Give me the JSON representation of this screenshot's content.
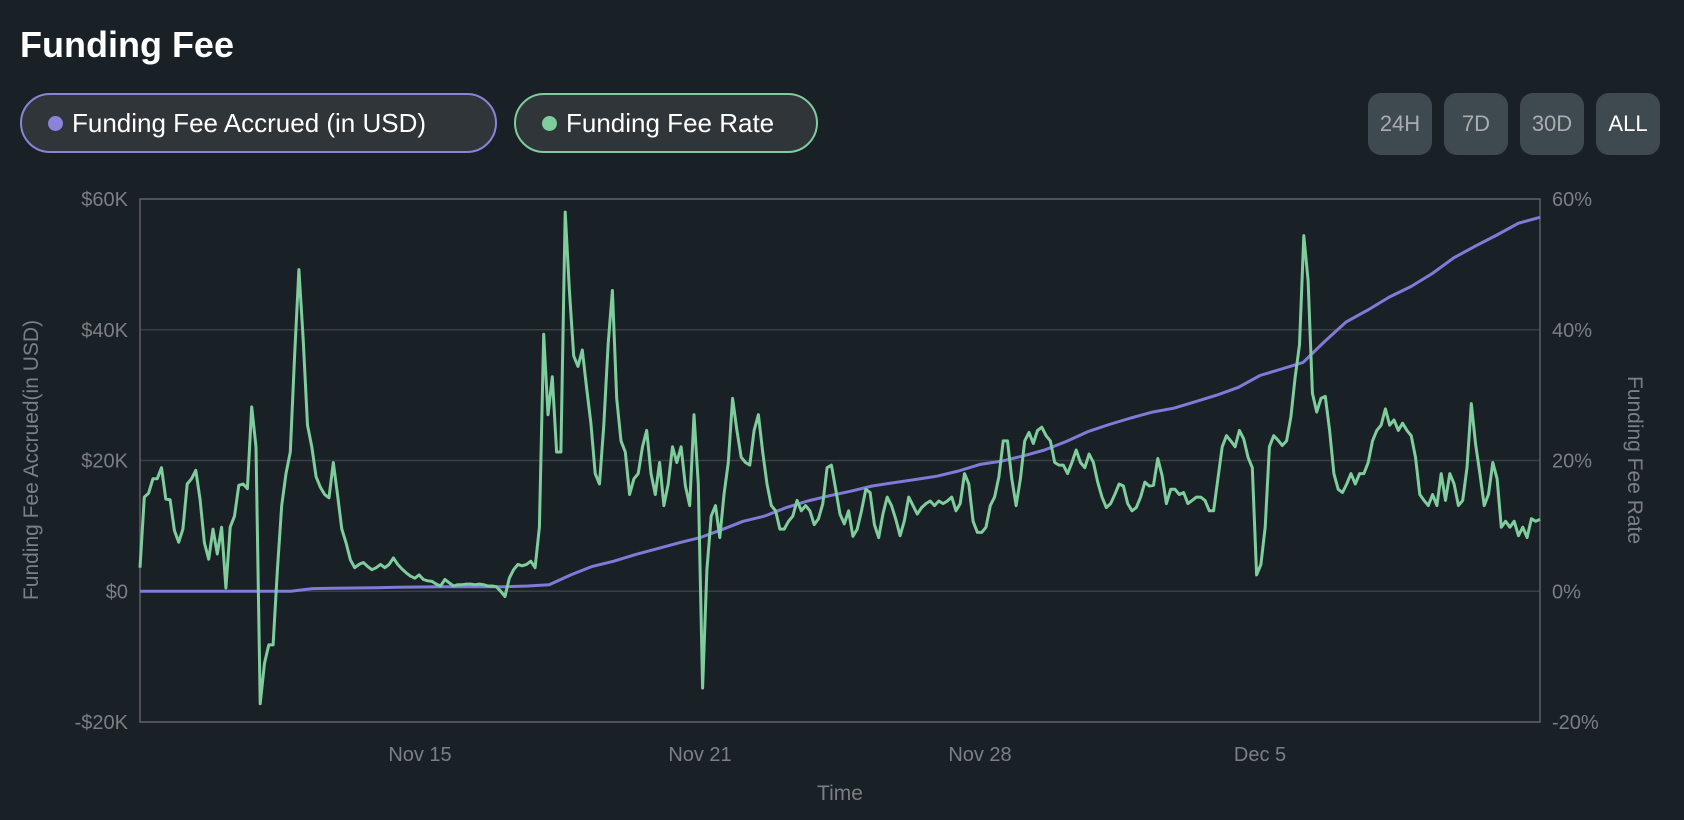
{
  "title": "Funding Fee",
  "legend": [
    {
      "label": "Funding Fee Accrued (in USD)",
      "color": "#8a83d8"
    },
    {
      "label": "Funding Fee Rate",
      "color": "#7fcc9c"
    }
  ],
  "ranges": [
    "24H",
    "7D",
    "30D",
    "ALL"
  ],
  "active_range": "ALL",
  "chart_data": {
    "type": "line",
    "xlabel": "Time",
    "ylabel_left": "Funding Fee Accrued(in USD)",
    "ylabel_right": "Funding Fee Rate",
    "grid": true,
    "x_range_days": [
      0,
      32.5
    ],
    "x_ticks": [
      {
        "label": "Nov 15",
        "day": 6.5
      },
      {
        "label": "Nov 21",
        "day": 13
      },
      {
        "label": "Nov 28",
        "day": 19.5
      },
      {
        "label": "Dec 5",
        "day": 26
      }
    ],
    "y_left": {
      "range": [
        -20000,
        60000
      ],
      "ticks": [
        60000,
        40000,
        20000,
        0,
        -20000
      ],
      "tick_labels": [
        "$60K",
        "$40K",
        "$20K",
        "$0",
        "-$20K"
      ]
    },
    "y_right": {
      "range": [
        -20,
        60
      ],
      "ticks": [
        60,
        40,
        20,
        0,
        -20
      ],
      "tick_labels": [
        "60%",
        "40%",
        "20%",
        "0%",
        "-20%"
      ]
    },
    "series": [
      {
        "name": "Funding Fee Accrued (in USD)",
        "axis": "left",
        "color": "#7f7bd8",
        "unit": "thousand USD",
        "step_days": 0.5,
        "values": [
          0,
          0,
          0,
          0,
          0,
          0,
          0,
          0,
          0.4,
          0.45,
          0.5,
          0.55,
          0.6,
          0.65,
          0.7,
          0.7,
          0.7,
          0.7,
          0.8,
          1.0,
          2.5,
          3.8,
          4.6,
          5.6,
          6.5,
          7.4,
          8.2,
          9.4,
          10.7,
          11.5,
          12.8,
          13.8,
          14.6,
          15.3,
          16.1,
          16.6,
          17.1,
          17.6,
          18.4,
          19.4,
          19.9,
          20.7,
          21.6,
          22.9,
          24.4,
          25.5,
          26.5,
          27.4,
          28.0,
          29.0,
          30.0,
          31.2,
          33.0,
          34.0,
          35.0,
          38.2,
          41.2,
          43.0,
          45.0,
          46.6,
          48.6,
          51.0,
          52.8,
          54.5,
          56.3,
          57.2
        ]
      },
      {
        "name": "Funding Fee Rate",
        "axis": "right",
        "color": "#7fcc9c",
        "unit": "percent",
        "values": [
          3.6,
          14.4,
          15,
          17.2,
          17.2,
          18.9,
          14.1,
          14,
          9.3,
          7.5,
          9.5,
          16.4,
          17.2,
          18.5,
          14,
          7.4,
          4.9,
          9.5,
          5.7,
          9.8,
          0.5,
          9.8,
          11.5,
          16.2,
          16.4,
          15.7,
          28.2,
          22.1,
          -17.2,
          -11,
          -8.2,
          -8.2,
          3.3,
          13.1,
          18,
          21.3,
          36,
          49.2,
          38.5,
          25.4,
          22.1,
          17.5,
          15.9,
          14.8,
          14.3,
          19.7,
          14.8,
          9.5,
          7.4,
          4.8,
          3.6,
          4.1,
          4.4,
          3.8,
          3.3,
          3.6,
          4.1,
          3.6,
          4.1,
          5.1,
          4.1,
          3.4,
          2.8,
          2.3,
          2,
          2.5,
          1.8,
          1.6,
          1.5,
          1.1,
          0.8,
          1.8,
          1.3,
          0.8,
          1,
          1,
          1.1,
          1.1,
          1,
          1.1,
          1,
          0.8,
          0.8,
          0.7,
          0,
          -0.8,
          2,
          3.3,
          4.1,
          3.9,
          4.1,
          4.6,
          3.6,
          9.8,
          39.3,
          27,
          32.8,
          21.3,
          21.3,
          58,
          46,
          36,
          34.4,
          36.9,
          31.1,
          25.7,
          18,
          16.4,
          25.4,
          37.7,
          46,
          29.5,
          23,
          21.3,
          14.8,
          17.2,
          18,
          22.1,
          24.6,
          18,
          14.8,
          19.7,
          13.1,
          16.4,
          22.1,
          19.7,
          22.1,
          16.1,
          13.1,
          27,
          16.4,
          -14.8,
          3.3,
          11.5,
          13.1,
          8.2,
          14.8,
          19.7,
          29.5,
          24.6,
          20.5,
          19.7,
          19.3,
          24.6,
          27,
          21.3,
          16.4,
          13.1,
          12.3,
          9.5,
          9.5,
          10.7,
          11.5,
          13.9,
          12.3,
          13.1,
          12.3,
          10.2,
          11.1,
          13.4,
          18.9,
          19.3,
          15.6,
          11.8,
          10.3,
          12.3,
          8.4,
          9.5,
          12.3,
          15.6,
          15.1,
          10.2,
          8.2,
          11.8,
          14.4,
          13.1,
          11,
          8.5,
          10.8,
          14.4,
          13.1,
          11.8,
          12.8,
          13.4,
          13.8,
          13.1,
          13.8,
          13.4,
          13.8,
          14.4,
          12.3,
          13.4,
          18,
          16.4,
          10.7,
          9,
          9,
          9.8,
          13.1,
          14.4,
          17.5,
          23,
          23,
          17.2,
          13.1,
          17.2,
          23,
          24.3,
          22.6,
          24.6,
          25.1,
          23.8,
          23,
          19.7,
          19.3,
          19.3,
          18,
          19.7,
          21.6,
          19.7,
          18.9,
          21,
          19.7,
          16.7,
          14.4,
          12.8,
          13.4,
          14.8,
          16.4,
          16.1,
          13.4,
          12.3,
          12.8,
          14.4,
          16.7,
          16.1,
          16.2,
          20.3,
          17.7,
          13.4,
          15.6,
          15.6,
          14.8,
          15.1,
          13.4,
          13.9,
          14.4,
          14.4,
          13.9,
          12.3,
          12.3,
          17.2,
          22.1,
          23.8,
          23,
          22.1,
          24.6,
          23.3,
          20.5,
          18.9,
          2.5,
          4.1,
          9.8,
          22.1,
          23.8,
          23.1,
          22.3,
          23,
          26.7,
          32.8,
          37.7,
          54.4,
          47.5,
          30.3,
          27.4,
          29.5,
          29.8,
          24.6,
          18,
          15.6,
          15.1,
          16.4,
          18,
          16.4,
          18,
          18,
          19.7,
          23,
          24.6,
          25.4,
          27.9,
          25.4,
          26.2,
          24.6,
          25.7,
          24.6,
          23.8,
          20.5,
          14.8,
          13.9,
          13.1,
          14.8,
          13.1,
          18,
          13.9,
          18,
          16.4,
          13.1,
          13.9,
          18.9,
          28.7,
          22.5,
          18,
          13.1,
          14.8,
          19.7,
          17.2,
          9.8,
          10.7,
          9.8,
          10.7,
          8.5,
          9.8,
          8.2,
          11.1,
          10.7,
          11
        ]
      }
    ]
  }
}
